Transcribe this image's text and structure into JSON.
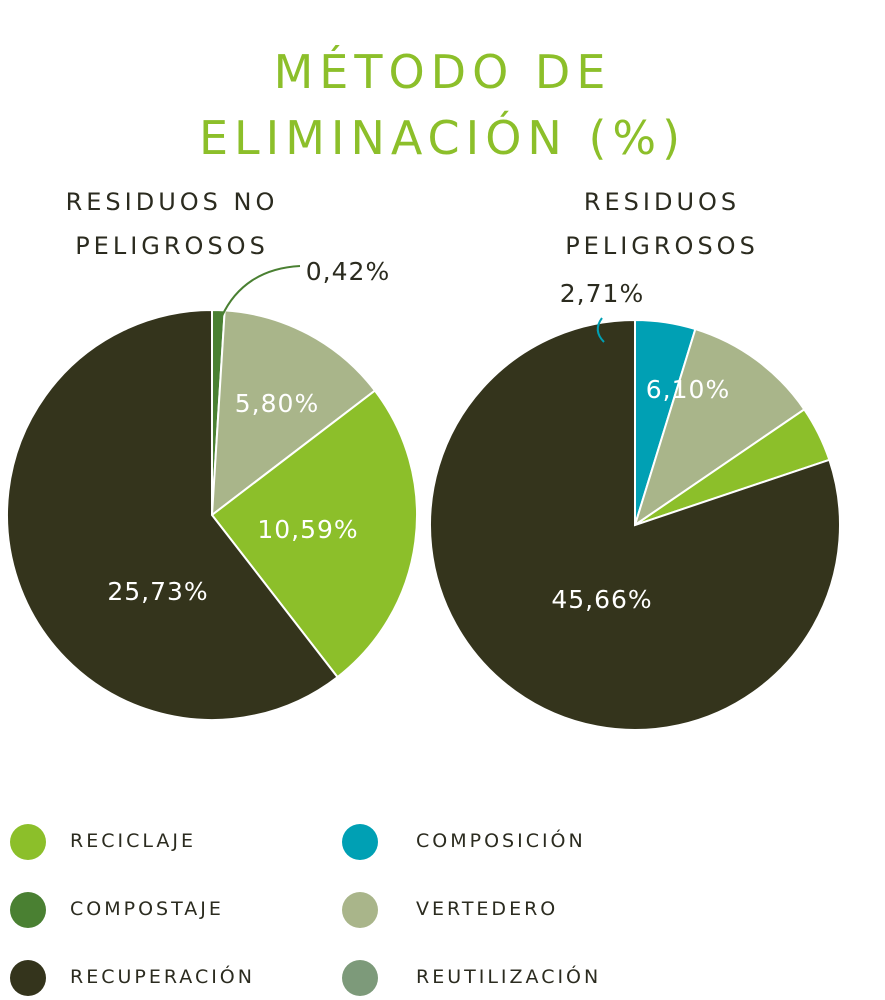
{
  "title": {
    "line1": "MÉTODO DE",
    "line2": "ELIMINACIÓN (%)"
  },
  "colors": {
    "reciclaje": "#8cbf2a",
    "compostaje": "#4a8032",
    "recuperacion": "#34341c",
    "composicion": "#00a0b4",
    "vertedero": "#a9b58a",
    "reutilizacion": "#7d9a7a",
    "text": "#2b2b1f",
    "title": "#8cbf2a"
  },
  "chart_data": [
    {
      "type": "pie",
      "title_line1": "RESIDUOS NO",
      "title_line2": "PELIGROSOS",
      "slices": [
        {
          "key": "compostaje",
          "value": 0.42,
          "label": "0,42%",
          "color": "#4a8032"
        },
        {
          "key": "vertedero",
          "value": 5.8,
          "label": "5,80%",
          "color": "#a9b58a"
        },
        {
          "key": "reciclaje",
          "value": 10.59,
          "label": "10,59%",
          "color": "#8cbf2a"
        },
        {
          "key": "recuperacion",
          "value": 25.73,
          "label": "25,73%",
          "color": "#34341c"
        }
      ]
    },
    {
      "type": "pie",
      "title_line1": "RESIDUOS",
      "title_line2": "PELIGROSOS",
      "slices": [
        {
          "key": "composicion",
          "value": 2.71,
          "label": "2,71%",
          "color": "#00a0b4"
        },
        {
          "key": "vertedero",
          "value": 6.1,
          "label": "6,10%",
          "color": "#a9b58a"
        },
        {
          "key": "reciclaje",
          "value": 2.5,
          "label": "",
          "color": "#8cbf2a"
        },
        {
          "key": "recuperacion",
          "value": 45.66,
          "label": "45,66%",
          "color": "#34341c"
        }
      ]
    }
  ],
  "legend": [
    {
      "key": "reciclaje",
      "label": "RECICLAJE",
      "color": "#8cbf2a"
    },
    {
      "key": "composicion",
      "label": "COMPOSICIÓN",
      "color": "#00a0b4"
    },
    {
      "key": "compostaje",
      "label": "COMPOSTAJE",
      "color": "#4a8032"
    },
    {
      "key": "vertedero",
      "label": "VERTEDERO",
      "color": "#a9b58a"
    },
    {
      "key": "recuperacion",
      "label": "RECUPERACIÓN",
      "color": "#34341c"
    },
    {
      "key": "reutilizacion",
      "label": "REUTILIZACIÓN",
      "color": "#7d9a7a"
    }
  ]
}
